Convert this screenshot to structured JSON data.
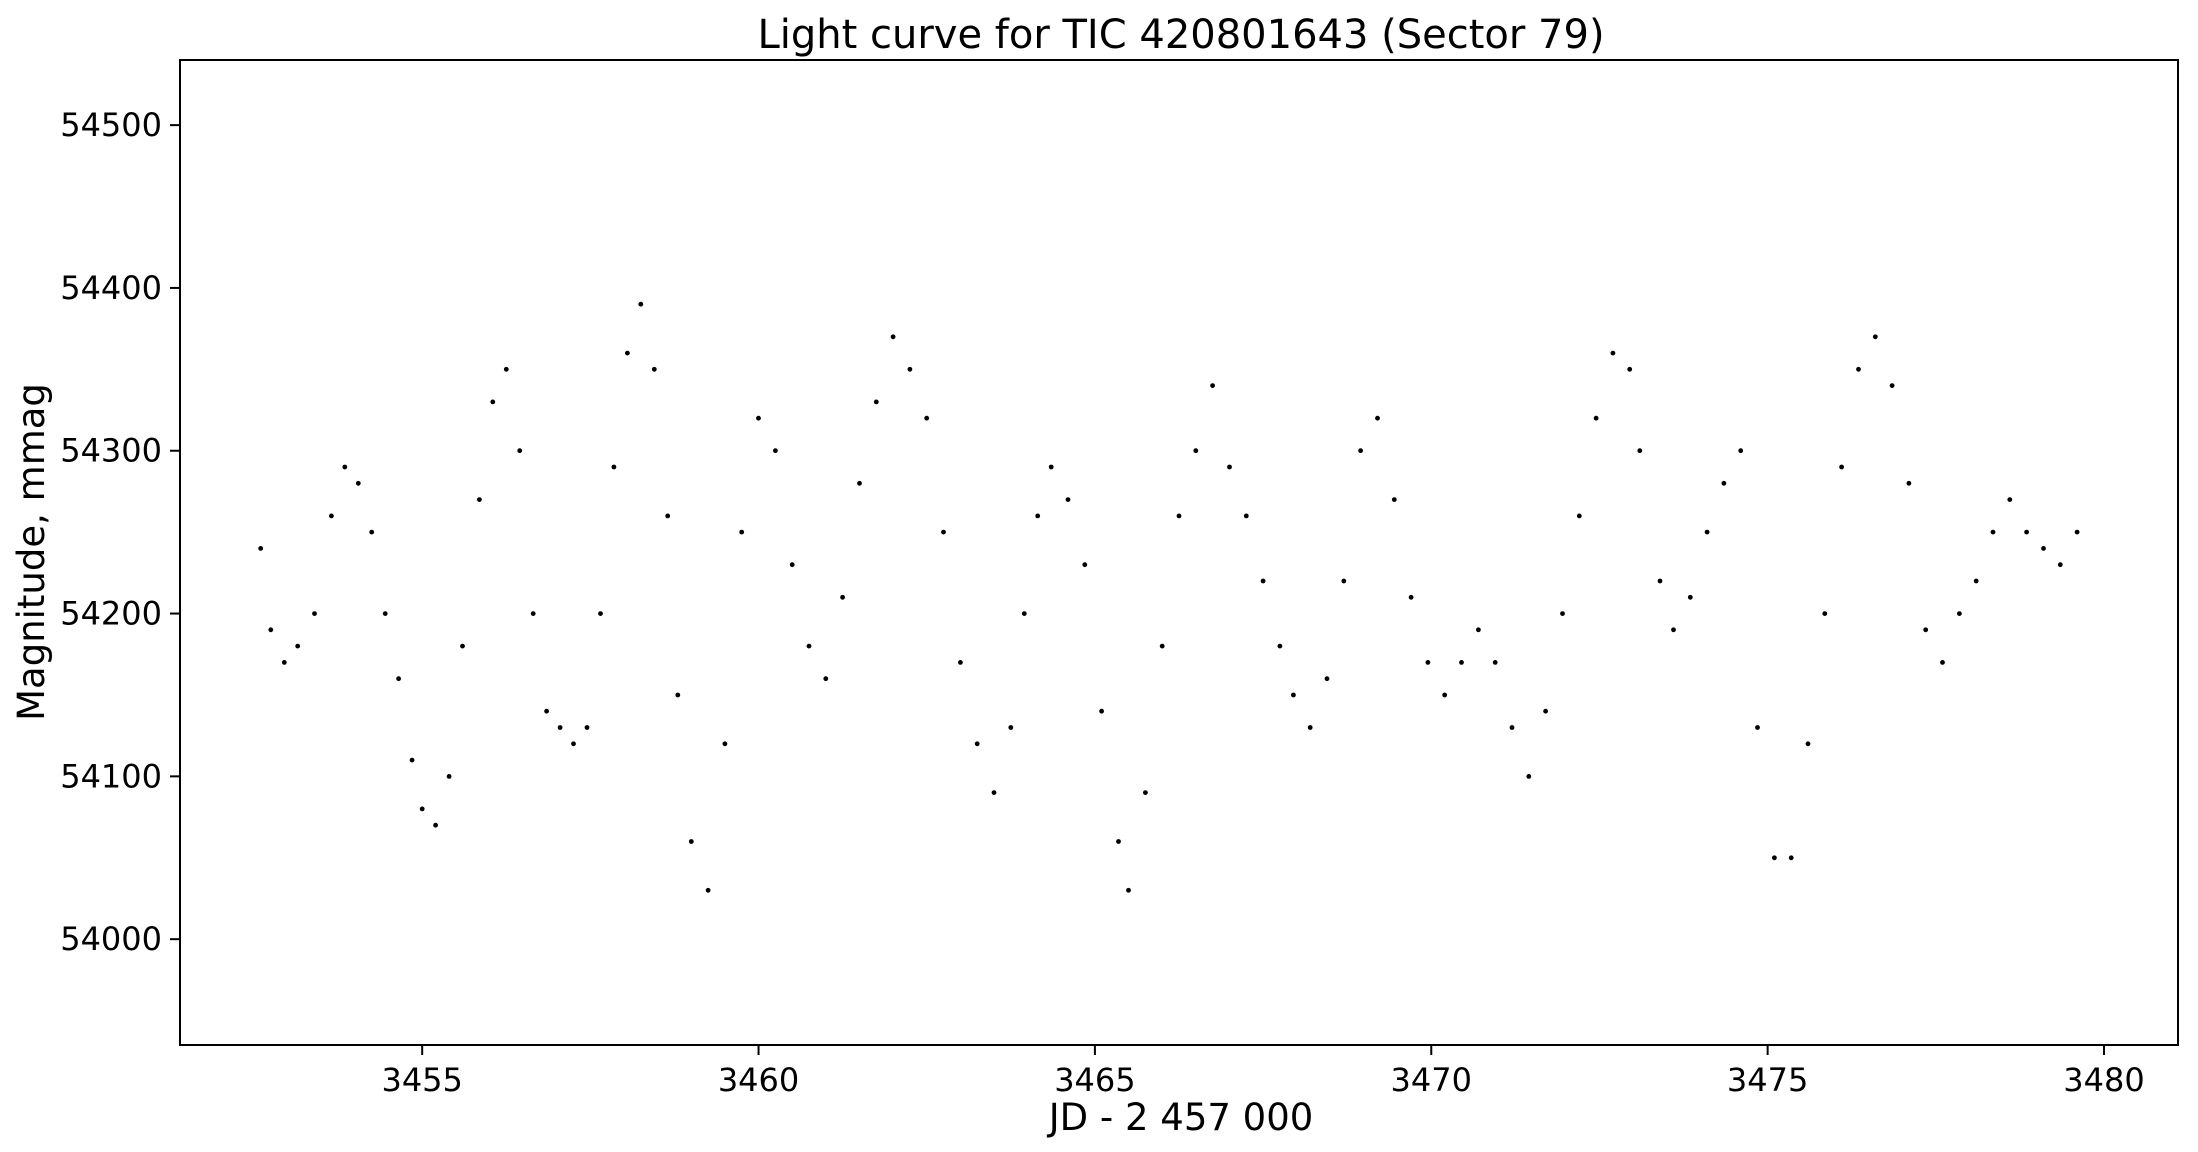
{
  "chart_data": {
    "type": "scatter",
    "title": "Light curve for TIC 420801643 (Sector 79)",
    "xlabel": "JD - 2 457 000",
    "ylabel": "Magnitude, mmag",
    "xlim": [
      3451.4,
      3481.1
    ],
    "ylim": [
      53935,
      54540
    ],
    "xticks": [
      3455,
      3460,
      3465,
      3470,
      3475,
      3480
    ],
    "yticks": [
      54000,
      54100,
      54200,
      54300,
      54400,
      54500
    ],
    "grid": false,
    "legend": "none",
    "point_color": "#000000",
    "series": [
      {
        "x": [
          3452.6,
          3452.75,
          3452.95,
          3453.15,
          3453.4,
          3453.65,
          3453.85,
          3454.05,
          3454.25,
          3454.45,
          3454.65,
          3454.85,
          3455.0,
          3455.2,
          3455.4,
          3455.6,
          3455.85,
          3456.05,
          3456.25,
          3456.45,
          3456.65,
          3456.85,
          3457.05,
          3457.25,
          3457.45,
          3457.65,
          3457.85,
          3458.05,
          3458.25,
          3458.45,
          3458.65,
          3458.8,
          3459.0,
          3459.25,
          3459.5,
          3459.75,
          3460.0,
          3460.25,
          3460.5,
          3460.75,
          3461.0,
          3461.25,
          3461.5,
          3461.75,
          3462.0,
          3462.25,
          3462.5,
          3462.75,
          3463.0,
          3463.25,
          3463.5,
          3463.75,
          3463.95,
          3464.15,
          3464.35,
          3464.6,
          3464.85,
          3465.1,
          3465.35,
          3465.5,
          3465.75,
          3466.0,
          3466.25,
          3466.5,
          3466.75,
          3467.0,
          3467.25,
          3467.5,
          3467.75,
          3467.95,
          3468.2,
          3468.45,
          3468.7,
          3468.95,
          3469.2,
          3469.45,
          3469.7,
          3469.95,
          3470.2,
          3470.45,
          3470.7,
          3470.95,
          3471.2,
          3471.45,
          3471.7,
          3471.95,
          3472.2,
          3472.45,
          3472.7,
          3472.95,
          3473.1,
          3473.4,
          3473.6,
          3473.85,
          3474.1,
          3474.35,
          3474.6,
          3474.85,
          3475.1,
          3475.35,
          3475.6,
          3475.85,
          3476.1,
          3476.35,
          3476.6,
          3476.85,
          3477.1,
          3477.35,
          3477.6,
          3477.85,
          3478.1,
          3478.35,
          3478.6,
          3478.85,
          3479.1,
          3479.35,
          3479.6
        ],
        "y": [
          54240,
          54190,
          54170,
          54180,
          54200,
          54260,
          54290,
          54280,
          54250,
          54200,
          54160,
          54110,
          54080,
          54070,
          54100,
          54180,
          54270,
          54330,
          54350,
          54300,
          54200,
          54140,
          54130,
          54120,
          54130,
          54200,
          54290,
          54360,
          54390,
          54350,
          54260,
          54150,
          54060,
          54030,
          54120,
          54250,
          54320,
          54300,
          54230,
          54180,
          54160,
          54210,
          54280,
          54330,
          54370,
          54350,
          54320,
          54250,
          54170,
          54120,
          54090,
          54130,
          54200,
          54260,
          54290,
          54270,
          54230,
          54140,
          54060,
          54030,
          54090,
          54180,
          54260,
          54300,
          54340,
          54290,
          54260,
          54220,
          54180,
          54150,
          54130,
          54160,
          54220,
          54300,
          54320,
          54270,
          54210,
          54170,
          54150,
          54170,
          54190,
          54170,
          54130,
          54100,
          54140,
          54200,
          54260,
          54320,
          54360,
          54350,
          54300,
          54220,
          54190,
          54210,
          54250,
          54280,
          54300,
          54130,
          54050,
          54050,
          54120,
          54200,
          54290,
          54350,
          54370,
          54340,
          54280,
          54190,
          54170,
          54200,
          54220,
          54250,
          54270,
          54250,
          54240,
          54230,
          54250
        ],
        "label": ""
      }
    ]
  }
}
